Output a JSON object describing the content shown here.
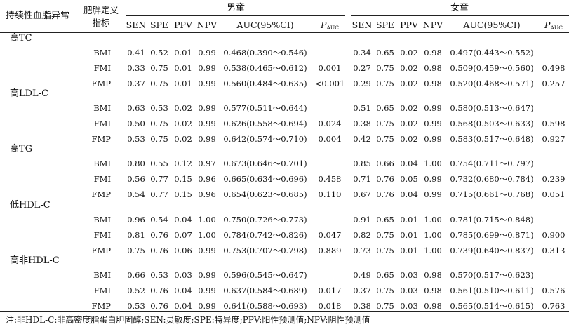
{
  "header": {
    "col_condition": "持续性血脂异常",
    "col_definition_line1": "肥胖定义",
    "col_definition_line2": "指标",
    "boys": "男童",
    "girls": "女童",
    "metrics": [
      "SEN",
      "SPE",
      "PPV",
      "NPV"
    ],
    "auc_label": "AUC(95%CI)",
    "p_label": "P",
    "p_sub": "AUC"
  },
  "groups": [
    {
      "label": "高TC",
      "rows": [
        {
          "measure": "BMI",
          "boys": {
            "sen": "0.41",
            "spe": "0.52",
            "ppv": "0.01",
            "npv": "0.99",
            "auc": "0.468(0.390～0.546)",
            "p": ""
          },
          "girls": {
            "sen": "0.34",
            "spe": "0.65",
            "ppv": "0.02",
            "npv": "0.98",
            "auc": "0.497(0.443～0.552)",
            "p": ""
          }
        },
        {
          "measure": "FMI",
          "boys": {
            "sen": "0.33",
            "spe": "0.75",
            "ppv": "0.01",
            "npv": "0.99",
            "auc": "0.538(0.465～0.612)",
            "p": "0.001"
          },
          "girls": {
            "sen": "0.27",
            "spe": "0.75",
            "ppv": "0.02",
            "npv": "0.98",
            "auc": "0.509(0.459～0.560)",
            "p": "0.498"
          }
        },
        {
          "measure": "FMP",
          "boys": {
            "sen": "0.37",
            "spe": "0.75",
            "ppv": "0.01",
            "npv": "0.99",
            "auc": "0.560(0.484～0.635)",
            "p": "<0.001"
          },
          "girls": {
            "sen": "0.29",
            "spe": "0.75",
            "ppv": "0.02",
            "npv": "0.98",
            "auc": "0.520(0.468～0.571)",
            "p": "0.257"
          }
        }
      ]
    },
    {
      "label": "高LDL-C",
      "rows": [
        {
          "measure": "BMI",
          "boys": {
            "sen": "0.63",
            "spe": "0.53",
            "ppv": "0.02",
            "npv": "0.99",
            "auc": "0.577(0.511～0.644)",
            "p": ""
          },
          "girls": {
            "sen": "0.51",
            "spe": "0.65",
            "ppv": "0.02",
            "npv": "0.99",
            "auc": "0.580(0.513～0.647)",
            "p": ""
          }
        },
        {
          "measure": "FMI",
          "boys": {
            "sen": "0.50",
            "spe": "0.75",
            "ppv": "0.02",
            "npv": "0.99",
            "auc": "0.626(0.558～0.694)",
            "p": "0.024"
          },
          "girls": {
            "sen": "0.38",
            "spe": "0.75",
            "ppv": "0.02",
            "npv": "0.99",
            "auc": "0.568(0.503～0.633)",
            "p": "0.598"
          }
        },
        {
          "measure": "FMP",
          "boys": {
            "sen": "0.53",
            "spe": "0.75",
            "ppv": "0.02",
            "npv": "0.99",
            "auc": "0.642(0.574～0.710)",
            "p": "0.004"
          },
          "girls": {
            "sen": "0.42",
            "spe": "0.75",
            "ppv": "0.02",
            "npv": "0.99",
            "auc": "0.583(0.517～0.648)",
            "p": "0.927"
          }
        }
      ]
    },
    {
      "label": "高TG",
      "rows": [
        {
          "measure": "BMI",
          "boys": {
            "sen": "0.80",
            "spe": "0.55",
            "ppv": "0.12",
            "npv": "0.97",
            "auc": "0.673(0.646～0.701)",
            "p": ""
          },
          "girls": {
            "sen": "0.85",
            "spe": "0.66",
            "ppv": "0.04",
            "npv": "1.00",
            "auc": "0.754(0.711～0.797)",
            "p": ""
          }
        },
        {
          "measure": "FMI",
          "boys": {
            "sen": "0.56",
            "spe": "0.77",
            "ppv": "0.15",
            "npv": "0.96",
            "auc": "0.665(0.634～0.696)",
            "p": "0.458"
          },
          "girls": {
            "sen": "0.71",
            "spe": "0.76",
            "ppv": "0.05",
            "npv": "0.99",
            "auc": "0.732(0.680～0.784)",
            "p": "0.239"
          }
        },
        {
          "measure": "FMP",
          "boys": {
            "sen": "0.54",
            "spe": "0.77",
            "ppv": "0.15",
            "npv": "0.96",
            "auc": "0.654(0.623～0.685)",
            "p": "0.110"
          },
          "girls": {
            "sen": "0.67",
            "spe": "0.76",
            "ppv": "0.04",
            "npv": "0.99",
            "auc": "0.715(0.661～0.768)",
            "p": "0.051"
          }
        }
      ]
    },
    {
      "label": "低HDL-C",
      "rows": [
        {
          "measure": "BMI",
          "boys": {
            "sen": "0.96",
            "spe": "0.54",
            "ppv": "0.04",
            "npv": "1.00",
            "auc": "0.750(0.726～0.773)",
            "p": ""
          },
          "girls": {
            "sen": "0.91",
            "spe": "0.65",
            "ppv": "0.01",
            "npv": "1.00",
            "auc": "0.781(0.715～0.848)",
            "p": ""
          }
        },
        {
          "measure": "FMI",
          "boys": {
            "sen": "0.81",
            "spe": "0.76",
            "ppv": "0.07",
            "npv": "1.00",
            "auc": "0.784(0.742～0.826)",
            "p": "0.047"
          },
          "girls": {
            "sen": "0.82",
            "spe": "0.75",
            "ppv": "0.01",
            "npv": "1.00",
            "auc": "0.785(0.699～0.871)",
            "p": "0.900"
          }
        },
        {
          "measure": "FMP",
          "boys": {
            "sen": "0.75",
            "spe": "0.76",
            "ppv": "0.06",
            "npv": "0.99",
            "auc": "0.753(0.707～0.798)",
            "p": "0.889"
          },
          "girls": {
            "sen": "0.73",
            "spe": "0.75",
            "ppv": "0.01",
            "npv": "1.00",
            "auc": "0.739(0.640～0.837)",
            "p": "0.313"
          }
        }
      ]
    },
    {
      "label": "高非HDL-C",
      "rows": [
        {
          "measure": "BMI",
          "boys": {
            "sen": "0.66",
            "spe": "0.53",
            "ppv": "0.03",
            "npv": "0.99",
            "auc": "0.596(0.545～0.647)",
            "p": ""
          },
          "girls": {
            "sen": "0.49",
            "spe": "0.65",
            "ppv": "0.03",
            "npv": "0.98",
            "auc": "0.570(0.517～0.623)",
            "p": ""
          }
        },
        {
          "measure": "FMI",
          "boys": {
            "sen": "0.52",
            "spe": "0.76",
            "ppv": "0.04",
            "npv": "0.99",
            "auc": "0.637(0.584～0.689)",
            "p": "0.017"
          },
          "girls": {
            "sen": "0.37",
            "spe": "0.75",
            "ppv": "0.03",
            "npv": "0.98",
            "auc": "0.561(0.510～0.611)",
            "p": "0.576"
          }
        },
        {
          "measure": "FMP",
          "boys": {
            "sen": "0.53",
            "spe": "0.76",
            "ppv": "0.04",
            "npv": "0.99",
            "auc": "0.641(0.588～0.693)",
            "p": "0.018"
          },
          "girls": {
            "sen": "0.38",
            "spe": "0.75",
            "ppv": "0.03",
            "npv": "0.98",
            "auc": "0.565(0.514～0.615)",
            "p": "0.763"
          }
        }
      ]
    }
  ],
  "note": "注:非HDL-C:非高密度脂蛋白胆固醇;SEN:灵敏度;SPE:特异度;PPV:阳性预测值;NPV:阴性预测值"
}
